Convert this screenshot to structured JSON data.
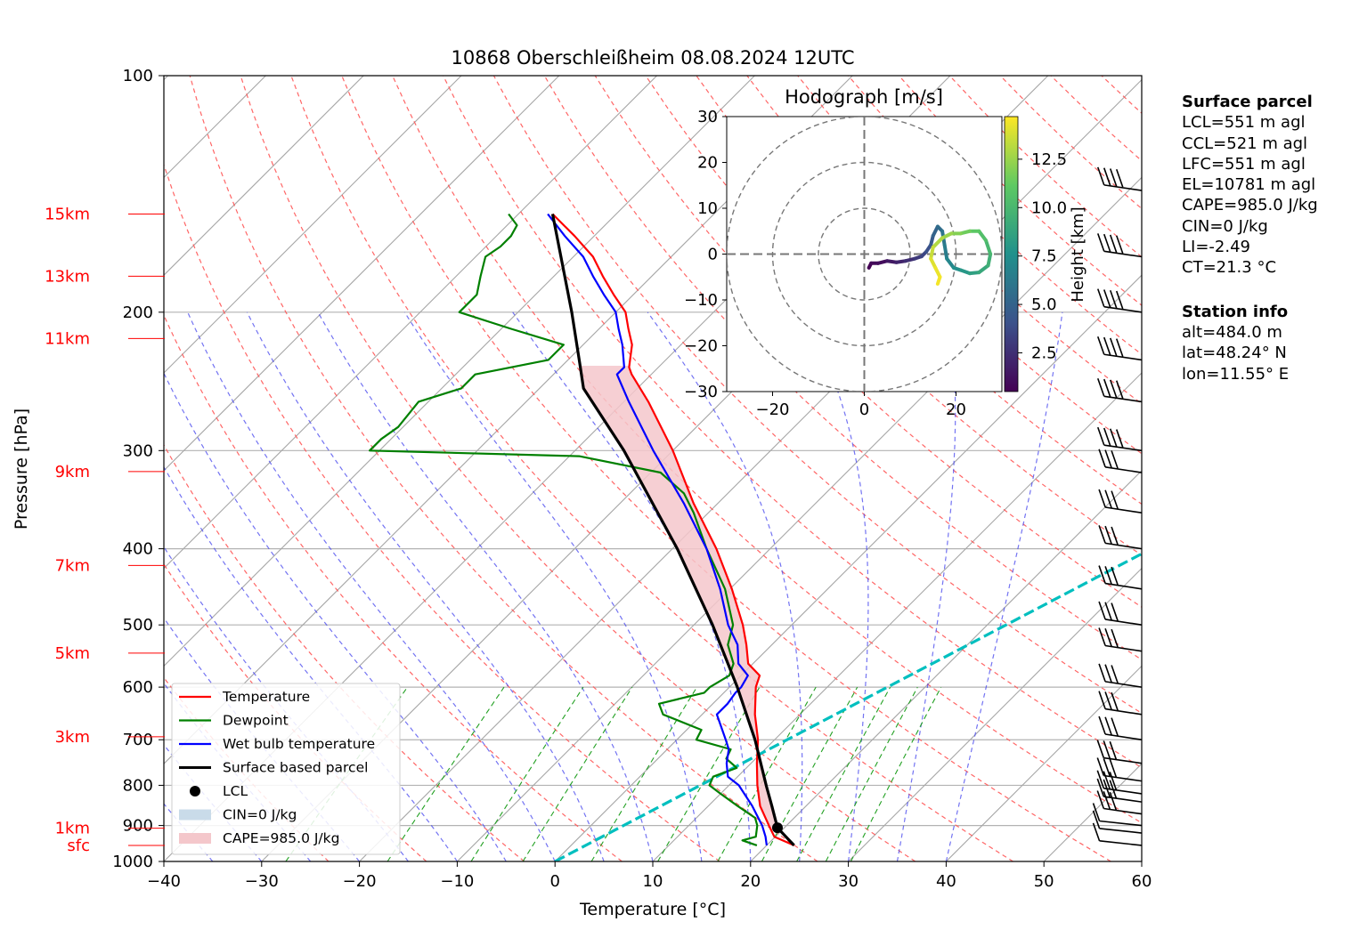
{
  "chart_data": {
    "type": "line",
    "title": "10868 Oberschleißheim 08.08.2024 12UTC",
    "xlabel": "Temperature [°C]",
    "ylabel": "Pressure [hPa]",
    "xlim": [
      -40,
      60
    ],
    "ylim": [
      1000,
      100
    ],
    "y_scale": "log",
    "grid": true,
    "x_ticks": [
      "−40",
      "−30",
      "−20",
      "−10",
      "0",
      "10",
      "20",
      "30",
      "40",
      "50",
      "60"
    ],
    "y_ticks": [
      {
        "p": 100,
        "label": "100"
      },
      {
        "p": 200,
        "label": "200"
      },
      {
        "p": 300,
        "label": "300"
      },
      {
        "p": 400,
        "label": "400"
      },
      {
        "p": 500,
        "label": "500"
      },
      {
        "p": 600,
        "label": "600"
      },
      {
        "p": 700,
        "label": "700"
      },
      {
        "p": 800,
        "label": "800"
      },
      {
        "p": 900,
        "label": "900"
      },
      {
        "p": 1000,
        "label": "1000"
      }
    ],
    "height_labels": [
      {
        "p": 150,
        "label": "15km"
      },
      {
        "p": 180,
        "label": "13km"
      },
      {
        "p": 216,
        "label": "11km"
      },
      {
        "p": 319,
        "label": "9km"
      },
      {
        "p": 420,
        "label": "7km"
      },
      {
        "p": 543,
        "label": "5km"
      },
      {
        "p": 694,
        "label": "3km"
      },
      {
        "p": 907,
        "label": "1km"
      },
      {
        "p": 954,
        "label": "sfc"
      }
    ],
    "legend_position": "lower-left",
    "legend": [
      {
        "label": "Temperature",
        "color": "#ff0000",
        "kind": "line"
      },
      {
        "label": "Dewpoint",
        "color": "#008000",
        "kind": "line"
      },
      {
        "label": "Wet bulb temperature",
        "color": "#0000ff",
        "kind": "line"
      },
      {
        "label": "Surface based parcel",
        "color": "#000000",
        "kind": "line"
      },
      {
        "label": "LCL",
        "color": "#000000",
        "kind": "marker"
      },
      {
        "label": "CIN=0 J/kg",
        "color": "#c9dbe9",
        "kind": "patch"
      },
      {
        "label": "CAPE=985.0 J/kg",
        "color": "#f4c7cb",
        "kind": "patch"
      }
    ],
    "series": [
      {
        "name": "Temperature",
        "color": "#ff0000",
        "points": [
          [
            954,
            22.8
          ],
          [
            930,
            19.9
          ],
          [
            900,
            18.2
          ],
          [
            850,
            15.3
          ],
          [
            800,
            12.9
          ],
          [
            750,
            10.6
          ],
          [
            700,
            8.3
          ],
          [
            650,
            5.4
          ],
          [
            600,
            2.7
          ],
          [
            580,
            1.9
          ],
          [
            560,
            -0.5
          ],
          [
            530,
            -2.6
          ],
          [
            500,
            -5.0
          ],
          [
            450,
            -9.8
          ],
          [
            400,
            -15.5
          ],
          [
            350,
            -22.5
          ],
          [
            300,
            -30.0
          ],
          [
            260,
            -37.5
          ],
          [
            240,
            -42.0
          ],
          [
            235,
            -43.0
          ],
          [
            220,
            -45.0
          ],
          [
            210,
            -47.0
          ],
          [
            200,
            -49.0
          ],
          [
            190,
            -52.0
          ],
          [
            180,
            -55.0
          ],
          [
            170,
            -58.0
          ],
          [
            160,
            -62.0
          ],
          [
            150,
            -66.5
          ]
        ]
      },
      {
        "name": "Dewpoint",
        "color": "#008000",
        "points": [
          [
            954,
            19.0
          ],
          [
            940,
            17.0
          ],
          [
            930,
            18.0
          ],
          [
            900,
            17.0
          ],
          [
            880,
            16.0
          ],
          [
            850,
            13.0
          ],
          [
            820,
            10.0
          ],
          [
            800,
            8.0
          ],
          [
            780,
            7.5
          ],
          [
            760,
            9.0
          ],
          [
            740,
            7.0
          ],
          [
            720,
            6.5
          ],
          [
            700,
            2.0
          ],
          [
            680,
            1.5
          ],
          [
            650,
            -4.0
          ],
          [
            630,
            -5.5
          ],
          [
            610,
            -2.0
          ],
          [
            600,
            -2.0
          ],
          [
            580,
            -1.2
          ],
          [
            560,
            -2.0
          ],
          [
            530,
            -4.5
          ],
          [
            500,
            -6.0
          ],
          [
            450,
            -10.5
          ],
          [
            400,
            -16.5
          ],
          [
            360,
            -21.5
          ],
          [
            340,
            -24.5
          ],
          [
            320,
            -29.0
          ],
          [
            305,
            -39.0
          ],
          [
            300,
            -61.0
          ],
          [
            290,
            -61.0
          ],
          [
            280,
            -60.5
          ],
          [
            260,
            -61.0
          ],
          [
            250,
            -58.0
          ],
          [
            240,
            -58.0
          ],
          [
            230,
            -52.0
          ],
          [
            220,
            -52.0
          ],
          [
            210,
            -59.0
          ],
          [
            200,
            -66.0
          ],
          [
            190,
            -66.0
          ],
          [
            180,
            -67.5
          ],
          [
            170,
            -69.0
          ],
          [
            165,
            -68.5
          ],
          [
            160,
            -68.5
          ],
          [
            155,
            -69.0
          ],
          [
            150,
            -71.0
          ]
        ]
      },
      {
        "name": "Wet bulb temperature",
        "color": "#0000ff",
        "points": [
          [
            954,
            20.0
          ],
          [
            930,
            19.0
          ],
          [
            900,
            17.5
          ],
          [
            850,
            14.5
          ],
          [
            800,
            11.0
          ],
          [
            780,
            9.0
          ],
          [
            750,
            7.5
          ],
          [
            720,
            6.3
          ],
          [
            700,
            5.0
          ],
          [
            650,
            1.5
          ],
          [
            630,
            1.5
          ],
          [
            610,
            1.2
          ],
          [
            600,
            1.2
          ],
          [
            580,
            0.7
          ],
          [
            560,
            -1.5
          ],
          [
            530,
            -3.5
          ],
          [
            500,
            -6.5
          ],
          [
            450,
            -11.0
          ],
          [
            400,
            -16.5
          ],
          [
            350,
            -23.5
          ],
          [
            300,
            -32.0
          ],
          [
            260,
            -39.5
          ],
          [
            240,
            -43.5
          ],
          [
            235,
            -43.5
          ],
          [
            220,
            -46.0
          ],
          [
            210,
            -48.0
          ],
          [
            200,
            -50.0
          ],
          [
            190,
            -53.0
          ],
          [
            180,
            -56.0
          ],
          [
            170,
            -59.0
          ],
          [
            160,
            -63.0
          ],
          [
            150,
            -67.0
          ]
        ]
      },
      {
        "name": "Surface based parcel",
        "color": "#000000",
        "points": [
          [
            954,
            22.8
          ],
          [
            906,
            19.3
          ],
          [
            850,
            16.5
          ],
          [
            800,
            13.8
          ],
          [
            700,
            8.0
          ],
          [
            600,
            0.8
          ],
          [
            500,
            -8.1
          ],
          [
            400,
            -19.5
          ],
          [
            300,
            -35.0
          ],
          [
            250,
            -45.5
          ],
          [
            232,
            -48.5
          ],
          [
            200,
            -54.5
          ],
          [
            150,
            -66.5
          ]
        ]
      }
    ],
    "lcl": {
      "p": 906,
      "t": 19.3
    },
    "zero_wetbulb_line": [
      [
        1000,
        0.0
      ],
      [
        600,
        14.9
      ],
      [
        150,
        60.0
      ]
    ],
    "annotations": [
      "CIN=0 J/kg",
      "CAPE=985.0 J/kg"
    ],
    "cape_j_kg": 985.0,
    "cin_j_kg": 0,
    "wind_barb_pressures_hpa": [
      954,
      920,
      900,
      870,
      840,
      820,
      790,
      750,
      700,
      650,
      600,
      540,
      500,
      450,
      400,
      360,
      320,
      300,
      260,
      230,
      200,
      170,
      140
    ],
    "hodograph": {
      "title": "Hodograph [m/s]",
      "xlim": [
        -30,
        30
      ],
      "ylim": [
        -30,
        30
      ],
      "ticks": [
        "−30",
        "−20",
        "−10",
        "0",
        "10",
        "20",
        "30"
      ],
      "x_ticks": [
        "−20",
        "0",
        "20"
      ],
      "rings_m_s": [
        10,
        20,
        30
      ],
      "colorbar_label": "Height [km]",
      "colorbar_ticks": [
        "2.5",
        "5.0",
        "7.5",
        "10.0",
        "12.5"
      ],
      "colorbar_range_km": [
        0.5,
        14.7
      ],
      "trace": [
        [
          1.0,
          -3.0,
          0.5
        ],
        [
          1.5,
          -2.0,
          0.8
        ],
        [
          3.0,
          -2.0,
          1.0
        ],
        [
          5.0,
          -1.5,
          1.5
        ],
        [
          7.0,
          -1.8,
          2.0
        ],
        [
          9.0,
          -1.5,
          2.5
        ],
        [
          11.0,
          -1.0,
          3.0
        ],
        [
          12.5,
          -0.5,
          3.5
        ],
        [
          13.5,
          0.5,
          4.0
        ],
        [
          14.5,
          2.0,
          4.5
        ],
        [
          15.0,
          4.0,
          5.0
        ],
        [
          16.0,
          6.0,
          5.5
        ],
        [
          17.0,
          5.0,
          6.0
        ],
        [
          17.5,
          2.0,
          6.5
        ],
        [
          18.0,
          -1.0,
          7.0
        ],
        [
          19.5,
          -3.0,
          7.5
        ],
        [
          21.0,
          -3.5,
          8.0
        ],
        [
          23.0,
          -4.2,
          8.5
        ],
        [
          25.0,
          -4.0,
          9.0
        ],
        [
          27.0,
          -2.5,
          9.5
        ],
        [
          27.5,
          0.0,
          10.0
        ],
        [
          26.5,
          3.0,
          10.5
        ],
        [
          25.0,
          5.0,
          11.0
        ],
        [
          23.0,
          5.0,
          11.5
        ],
        [
          21.0,
          4.5,
          12.0
        ],
        [
          19.0,
          4.5,
          12.5
        ],
        [
          17.0,
          3.5,
          13.0
        ],
        [
          15.0,
          1.5,
          13.5
        ],
        [
          14.5,
          -1.0,
          14.0
        ],
        [
          15.5,
          -3.0,
          14.3
        ],
        [
          16.5,
          -5.0,
          14.5
        ],
        [
          16.0,
          -6.5,
          14.7
        ]
      ]
    }
  },
  "info_panel": {
    "surface_header": "Surface parcel",
    "surface_lines": [
      "LCL=551 m agl",
      "CCL=521 m agl",
      "LFC=551 m agl",
      "EL=10781 m agl",
      "CAPE=985.0 J/kg",
      "CIN=0 J/kg",
      "LI=-2.49",
      "CT=21.3 °C"
    ],
    "station_header": "Station info",
    "station_lines": [
      "alt=484.0 m",
      "lat=48.24° N",
      "lon=11.55° E"
    ]
  }
}
